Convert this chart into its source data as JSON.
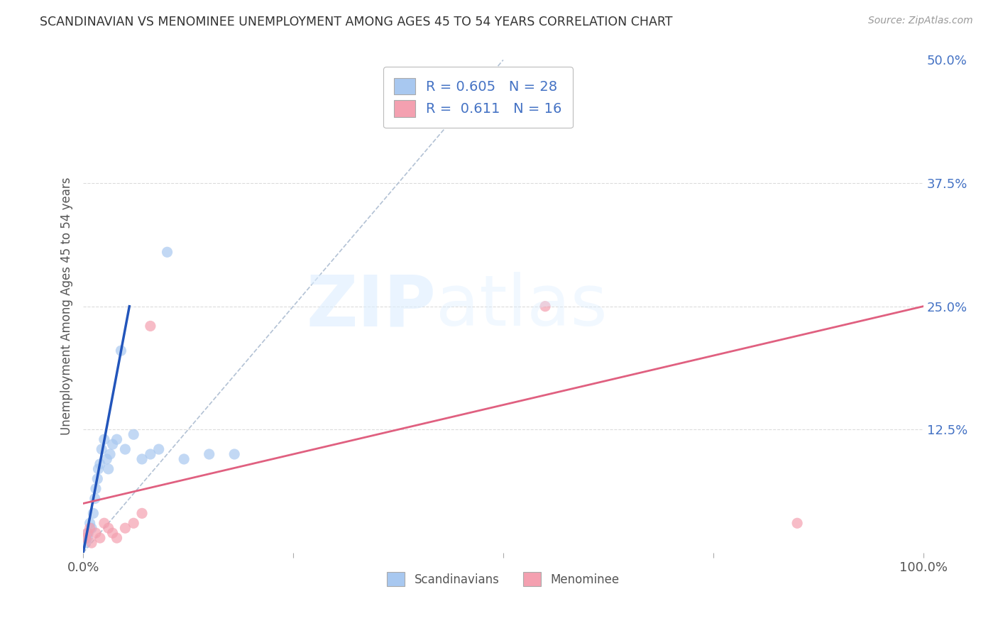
{
  "title": "SCANDINAVIAN VS MENOMINEE UNEMPLOYMENT AMONG AGES 45 TO 54 YEARS CORRELATION CHART",
  "source": "Source: ZipAtlas.com",
  "ylabel": "Unemployment Among Ages 45 to 54 years",
  "xlim": [
    0,
    100
  ],
  "ylim": [
    0,
    50
  ],
  "scandinavian_color": "#a8c8f0",
  "scandinavian_edge": "#7aaed8",
  "menominee_color": "#f4a0b0",
  "menominee_edge": "#e07090",
  "line_blue": "#2255bb",
  "line_pink": "#e06080",
  "ref_line_color": "#aabbd0",
  "background_color": "#ffffff",
  "grid_color": "#cccccc",
  "scan_x": [
    0.3,
    0.5,
    0.6,
    0.8,
    1.0,
    1.2,
    1.4,
    1.5,
    1.7,
    1.8,
    2.0,
    2.2,
    2.5,
    2.8,
    3.0,
    3.2,
    3.5,
    4.0,
    4.5,
    5.0,
    6.0,
    7.0,
    8.0,
    9.0,
    10.0,
    12.0,
    15.0,
    18.0
  ],
  "scan_y": [
    1.0,
    1.5,
    2.0,
    3.0,
    2.5,
    4.0,
    5.5,
    6.5,
    7.5,
    8.5,
    9.0,
    10.5,
    11.5,
    9.5,
    8.5,
    10.0,
    11.0,
    11.5,
    20.5,
    10.5,
    12.0,
    9.5,
    10.0,
    10.5,
    30.5,
    9.5,
    10.0,
    10.0
  ],
  "men_x": [
    0.3,
    0.5,
    0.8,
    1.0,
    1.5,
    2.0,
    2.5,
    3.0,
    3.5,
    4.0,
    5.0,
    6.0,
    7.0,
    8.0,
    55.0,
    85.0
  ],
  "men_y": [
    1.5,
    2.0,
    2.5,
    1.0,
    2.0,
    1.5,
    3.0,
    2.5,
    2.0,
    1.5,
    2.5,
    3.0,
    4.0,
    23.0,
    25.0,
    3.0
  ],
  "blue_line_x0": 0,
  "blue_line_y0": 0,
  "blue_line_x1": 5.5,
  "blue_line_y1": 25,
  "pink_line_x0": 0,
  "pink_line_y0": 5,
  "pink_line_x1": 100,
  "pink_line_y1": 25,
  "ref_line_x0": 0,
  "ref_line_y0": 0,
  "ref_line_x1": 50,
  "ref_line_y1": 50
}
